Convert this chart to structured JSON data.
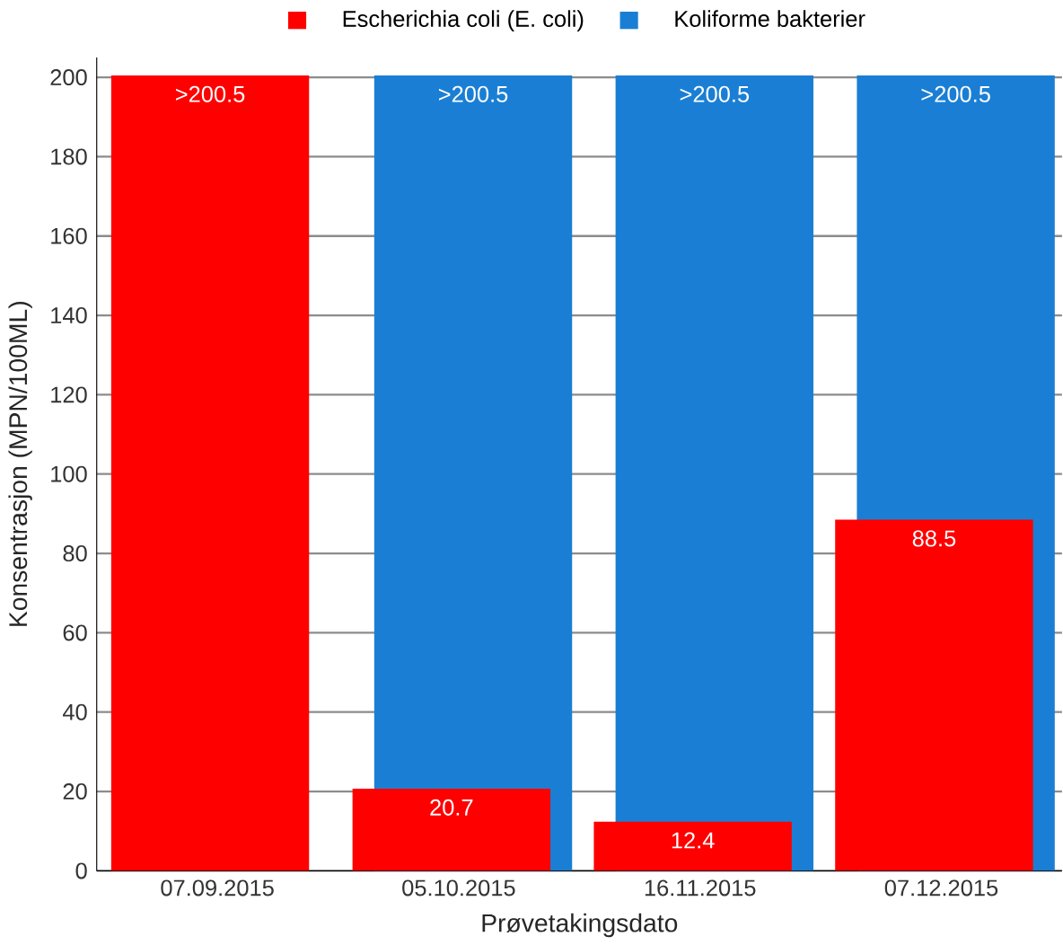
{
  "chart_data": {
    "type": "bar",
    "xlabel": "Prøvetakingsdato",
    "ylabel": "Konsentrasjon (MPN/100ML)",
    "categories": [
      "07.09.2015",
      "05.10.2015",
      "16.11.2015",
      "07.12.2015"
    ],
    "series": [
      {
        "name": "Escherichia coli (E. coli)",
        "color": "#ff0000",
        "values": [
          200.5,
          20.7,
          12.4,
          88.5
        ],
        "value_labels": [
          ">200.5",
          "20.7",
          "12.4",
          "88.5"
        ]
      },
      {
        "name": "Koliforme bakterier",
        "color": "#1a7fd4",
        "values": [
          null,
          200.5,
          200.5,
          200.5
        ],
        "value_labels": [
          null,
          ">200.5",
          ">200.5",
          ">200.5"
        ]
      }
    ],
    "ylim": [
      0,
      205
    ],
    "yticks": [
      0,
      20,
      40,
      60,
      80,
      100,
      120,
      140,
      160,
      180,
      200
    ],
    "grid": "y",
    "legend": "top"
  }
}
